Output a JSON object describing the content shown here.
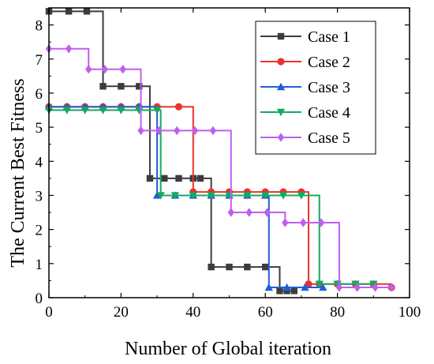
{
  "chart_data": {
    "type": "line",
    "step": true,
    "xlabel": "Number of Global iteration",
    "ylabel": "The Current Best Fitness",
    "xlim": [
      0,
      100
    ],
    "ylim": [
      0,
      8.5
    ],
    "xticks": [
      0,
      20,
      40,
      60,
      80,
      100
    ],
    "yticks": [
      0,
      1,
      2,
      3,
      4,
      5,
      6,
      7,
      8
    ],
    "legend_position": "top-right",
    "series": [
      {
        "name": "Case 1",
        "color": "#3c3c3c",
        "marker": "square",
        "x": [
          0,
          5.5,
          10.5,
          15,
          20,
          25,
          28,
          32,
          36,
          40,
          42,
          45,
          50,
          55,
          60,
          64,
          66,
          68
        ],
        "y": [
          8.4,
          8.4,
          8.4,
          6.2,
          6.2,
          6.2,
          3.5,
          3.5,
          3.5,
          3.5,
          3.5,
          0.9,
          0.9,
          0.9,
          0.9,
          0.2,
          0.2,
          0.2
        ]
      },
      {
        "name": "Case 2",
        "color": "#e8332c",
        "marker": "circle",
        "x": [
          0,
          5,
          10,
          15,
          20,
          25,
          30,
          36,
          40,
          45,
          50,
          55,
          60,
          65,
          70,
          72,
          75,
          80,
          85,
          90,
          95
        ],
        "y": [
          5.6,
          5.6,
          5.6,
          5.6,
          5.6,
          5.6,
          5.6,
          5.6,
          3.1,
          3.1,
          3.1,
          3.1,
          3.1,
          3.1,
          3.1,
          0.4,
          0.4,
          0.4,
          0.4,
          0.4,
          0.3
        ]
      },
      {
        "name": "Case 3",
        "color": "#1f5fd6",
        "marker": "triangle-up",
        "x": [
          0,
          5,
          10,
          15,
          20,
          25,
          30,
          35,
          40,
          45,
          50,
          55,
          60,
          61,
          66,
          71,
          76
        ],
        "y": [
          5.6,
          5.6,
          5.6,
          5.6,
          5.6,
          5.6,
          3.0,
          3.0,
          3.0,
          3.0,
          3.0,
          3.0,
          3.0,
          0.3,
          0.3,
          0.3,
          0.3
        ]
      },
      {
        "name": "Case 4",
        "color": "#17a861",
        "marker": "triangle-down",
        "x": [
          0,
          5,
          10,
          15,
          20,
          25,
          30,
          31,
          35,
          40,
          45,
          50,
          55,
          60,
          65,
          70,
          75,
          80,
          85,
          90
        ],
        "y": [
          5.5,
          5.5,
          5.5,
          5.5,
          5.5,
          5.5,
          5.5,
          3.0,
          3.0,
          3.0,
          3.0,
          3.0,
          3.0,
          3.0,
          3.0,
          3.0,
          0.4,
          0.4,
          0.4,
          0.4
        ]
      },
      {
        "name": "Case 5",
        "color": "#c05ef0",
        "marker": "diamond",
        "x": [
          0,
          5.5,
          11,
          15.5,
          20.5,
          25.5,
          30.5,
          35.5,
          40.5,
          45.5,
          50.5,
          55.5,
          60.5,
          65.5,
          70.5,
          75.5,
          80.5,
          85.5,
          90.5,
          95
        ],
        "y": [
          7.3,
          7.3,
          6.7,
          6.7,
          6.7,
          4.9,
          4.9,
          4.9,
          4.9,
          4.9,
          2.5,
          2.5,
          2.5,
          2.2,
          2.2,
          2.2,
          0.3,
          0.3,
          0.3,
          0.3
        ]
      }
    ]
  }
}
